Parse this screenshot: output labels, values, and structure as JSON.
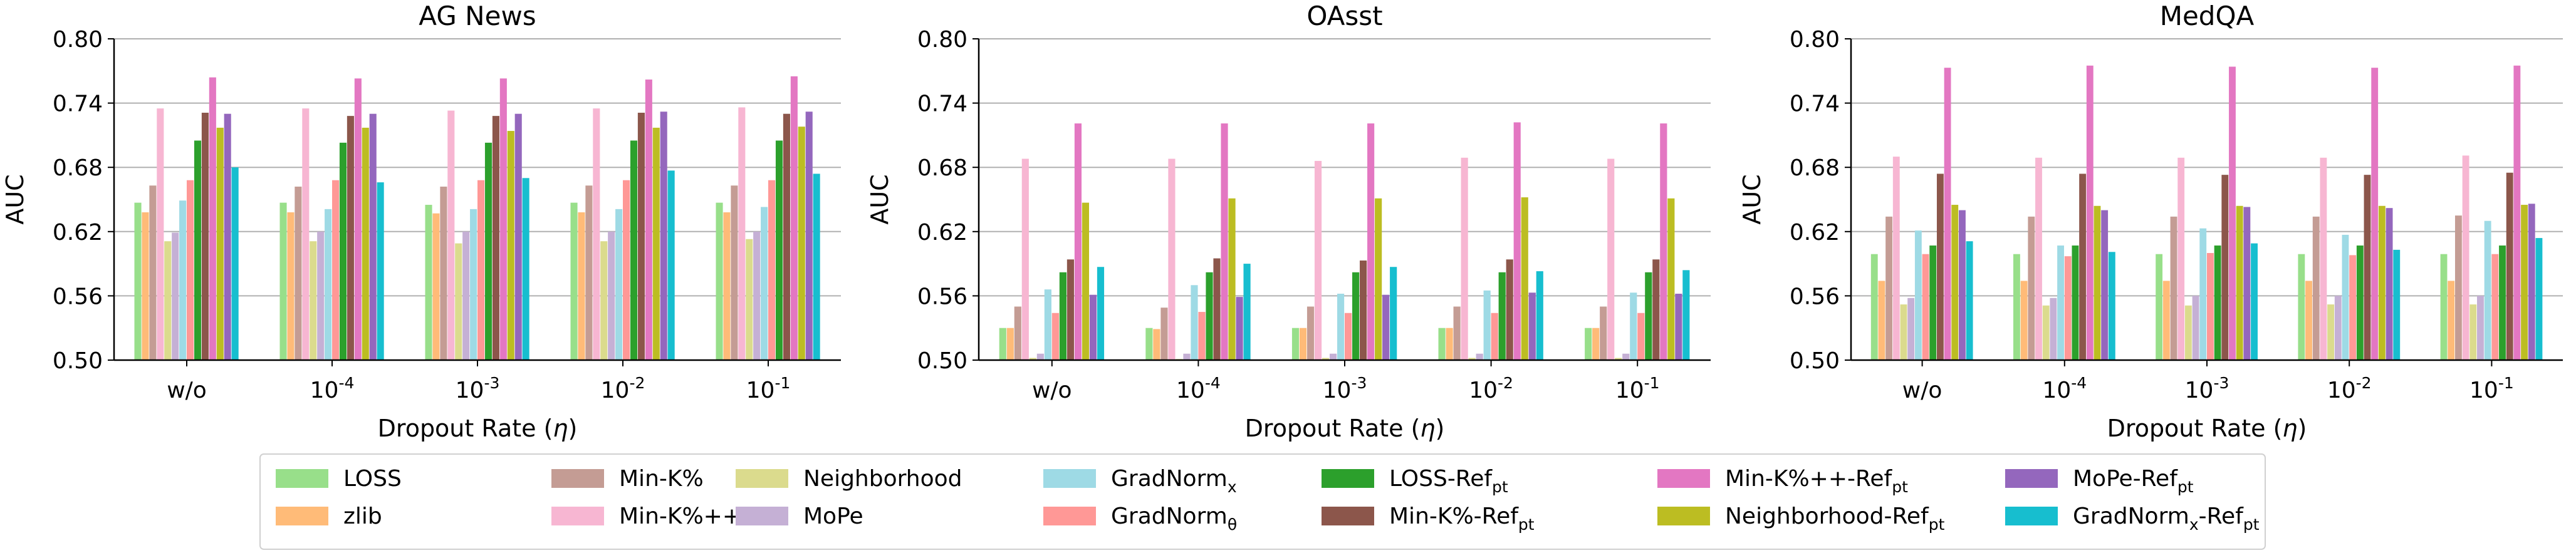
{
  "chart_data": [
    {
      "type": "bar",
      "title": "AG News",
      "xlabel": "Dropout Rate (η)",
      "ylabel": "AUC",
      "ylim": [
        0.5,
        0.8
      ],
      "yticks": [
        "0.50",
        "0.56",
        "0.62",
        "0.68",
        "0.74",
        "0.80"
      ],
      "grid": "horizontal",
      "categories": [
        "w/o",
        "10^-4",
        "10^-3",
        "10^-2",
        "10^-1"
      ],
      "series": [
        {
          "name": "LOSS",
          "values": [
            0.647,
            0.647,
            0.645,
            0.647,
            0.647
          ]
        },
        {
          "name": "zlib",
          "values": [
            0.638,
            0.638,
            0.637,
            0.638,
            0.638
          ]
        },
        {
          "name": "Min-K%",
          "values": [
            0.663,
            0.662,
            0.662,
            0.663,
            0.663
          ]
        },
        {
          "name": "Min-K%++",
          "values": [
            0.735,
            0.735,
            0.733,
            0.735,
            0.736
          ]
        },
        {
          "name": "Neighborhood",
          "values": [
            0.611,
            0.611,
            0.609,
            0.611,
            0.613
          ]
        },
        {
          "name": "MoPe",
          "values": [
            0.619,
            0.62,
            0.62,
            0.62,
            0.62
          ]
        },
        {
          "name": "GradNorm_x",
          "values": [
            0.649,
            0.641,
            0.641,
            0.641,
            0.643
          ]
        },
        {
          "name": "GradNorm_θ",
          "values": [
            0.668,
            0.668,
            0.668,
            0.668,
            0.668
          ]
        },
        {
          "name": "LOSS-Ref_pt",
          "values": [
            0.705,
            0.703,
            0.703,
            0.705,
            0.705
          ]
        },
        {
          "name": "Min-K%-Ref_pt",
          "values": [
            0.731,
            0.728,
            0.728,
            0.731,
            0.73
          ]
        },
        {
          "name": "Min-K%++-Ref_pt",
          "values": [
            0.764,
            0.763,
            0.763,
            0.762,
            0.765
          ]
        },
        {
          "name": "Neighborhood-Ref_pt",
          "values": [
            0.717,
            0.717,
            0.714,
            0.717,
            0.718
          ]
        },
        {
          "name": "MoPe-Ref_pt",
          "values": [
            0.73,
            0.73,
            0.73,
            0.732,
            0.732
          ]
        },
        {
          "name": "GradNorm_x-Ref_pt",
          "values": [
            0.68,
            0.666,
            0.67,
            0.677,
            0.674
          ]
        }
      ]
    },
    {
      "type": "bar",
      "title": "OAsst",
      "xlabel": "Dropout Rate (η)",
      "ylabel": "AUC",
      "ylim": [
        0.5,
        0.8
      ],
      "yticks": [
        "0.50",
        "0.56",
        "0.62",
        "0.68",
        "0.74",
        "0.80"
      ],
      "grid": "horizontal",
      "categories": [
        "w/o",
        "10^-4",
        "10^-3",
        "10^-2",
        "10^-1"
      ],
      "series": [
        {
          "name": "LOSS",
          "values": [
            0.53,
            0.53,
            0.53,
            0.53,
            0.53
          ]
        },
        {
          "name": "zlib",
          "values": [
            0.53,
            0.529,
            0.53,
            0.53,
            0.53
          ]
        },
        {
          "name": "Min-K%",
          "values": [
            0.55,
            0.549,
            0.55,
            0.55,
            0.55
          ]
        },
        {
          "name": "Min-K%++",
          "values": [
            0.688,
            0.688,
            0.686,
            0.689,
            0.688
          ]
        },
        {
          "name": "Neighborhood",
          "values": [
            0.502,
            0.501,
            0.502,
            0.502,
            0.502
          ]
        },
        {
          "name": "MoPe",
          "values": [
            0.506,
            0.506,
            0.506,
            0.506,
            0.506
          ]
        },
        {
          "name": "GradNorm_x",
          "values": [
            0.566,
            0.57,
            0.562,
            0.565,
            0.563
          ]
        },
        {
          "name": "GradNorm_θ",
          "values": [
            0.544,
            0.545,
            0.544,
            0.544,
            0.544
          ]
        },
        {
          "name": "LOSS-Ref_pt",
          "values": [
            0.582,
            0.582,
            0.582,
            0.582,
            0.582
          ]
        },
        {
          "name": "Min-K%-Ref_pt",
          "values": [
            0.594,
            0.595,
            0.593,
            0.594,
            0.594
          ]
        },
        {
          "name": "Min-K%++-Ref_pt",
          "values": [
            0.721,
            0.721,
            0.721,
            0.722,
            0.721
          ]
        },
        {
          "name": "Neighborhood-Ref_pt",
          "values": [
            0.647,
            0.651,
            0.651,
            0.652,
            0.651
          ]
        },
        {
          "name": "MoPe-Ref_pt",
          "values": [
            0.561,
            0.559,
            0.561,
            0.563,
            0.562
          ]
        },
        {
          "name": "GradNorm_x-Ref_pt",
          "values": [
            0.587,
            0.59,
            0.587,
            0.583,
            0.584
          ]
        }
      ]
    },
    {
      "type": "bar",
      "title": "MedQA",
      "xlabel": "Dropout Rate (η)",
      "ylabel": "AUC",
      "ylim": [
        0.5,
        0.8
      ],
      "yticks": [
        "0.50",
        "0.56",
        "0.62",
        "0.68",
        "0.74",
        "0.80"
      ],
      "grid": "horizontal",
      "categories": [
        "w/o",
        "10^-4",
        "10^-3",
        "10^-2",
        "10^-1"
      ],
      "series": [
        {
          "name": "LOSS",
          "values": [
            0.599,
            0.599,
            0.599,
            0.599,
            0.599
          ]
        },
        {
          "name": "zlib",
          "values": [
            0.574,
            0.574,
            0.574,
            0.574,
            0.574
          ]
        },
        {
          "name": "Min-K%",
          "values": [
            0.634,
            0.634,
            0.634,
            0.634,
            0.635
          ]
        },
        {
          "name": "Min-K%++",
          "values": [
            0.69,
            0.689,
            0.689,
            0.689,
            0.691
          ]
        },
        {
          "name": "Neighborhood",
          "values": [
            0.552,
            0.551,
            0.551,
            0.552,
            0.552
          ]
        },
        {
          "name": "MoPe",
          "values": [
            0.558,
            0.558,
            0.56,
            0.56,
            0.56
          ]
        },
        {
          "name": "GradNorm_x",
          "values": [
            0.621,
            0.607,
            0.623,
            0.617,
            0.63
          ]
        },
        {
          "name": "GradNorm_θ",
          "values": [
            0.599,
            0.597,
            0.6,
            0.598,
            0.599
          ]
        },
        {
          "name": "LOSS-Ref_pt",
          "values": [
            0.607,
            0.607,
            0.607,
            0.607,
            0.607
          ]
        },
        {
          "name": "Min-K%-Ref_pt",
          "values": [
            0.674,
            0.674,
            0.673,
            0.673,
            0.675
          ]
        },
        {
          "name": "Min-K%++-Ref_pt",
          "values": [
            0.773,
            0.775,
            0.774,
            0.773,
            0.775
          ]
        },
        {
          "name": "Neighborhood-Ref_pt",
          "values": [
            0.645,
            0.644,
            0.644,
            0.644,
            0.645
          ]
        },
        {
          "name": "MoPe-Ref_pt",
          "values": [
            0.64,
            0.64,
            0.643,
            0.642,
            0.646
          ]
        },
        {
          "name": "GradNorm_x-Ref_pt",
          "values": [
            0.611,
            0.601,
            0.609,
            0.603,
            0.614
          ]
        }
      ]
    }
  ],
  "legend": {
    "placement": "bottom-center",
    "columns": 7,
    "entries": [
      {
        "name": "LOSS",
        "color": "#98df8a"
      },
      {
        "name": "zlib",
        "color": "#ffbb78"
      },
      {
        "name": "Min-K%",
        "color": "#c49c94"
      },
      {
        "name": "Min-K%++",
        "color": "#f7b6d2"
      },
      {
        "name": "Neighborhood",
        "color": "#dbdb8d"
      },
      {
        "name": "MoPe",
        "color": "#c5b0d5"
      },
      {
        "name": "GradNorm_x",
        "color": "#9edae5"
      },
      {
        "name": "GradNorm_θ",
        "color": "#ff9896"
      },
      {
        "name": "LOSS-Ref_pt",
        "color": "#2ca02c"
      },
      {
        "name": "Min-K%-Ref_pt",
        "color": "#8c564b"
      },
      {
        "name": "Min-K%++-Ref_pt",
        "color": "#e377c2"
      },
      {
        "name": "Neighborhood-Ref_pt",
        "color": "#bcbd22"
      },
      {
        "name": "MoPe-Ref_pt",
        "color": "#9467bd"
      },
      {
        "name": "GradNorm_x-Ref_pt",
        "color": "#17becf"
      }
    ]
  }
}
